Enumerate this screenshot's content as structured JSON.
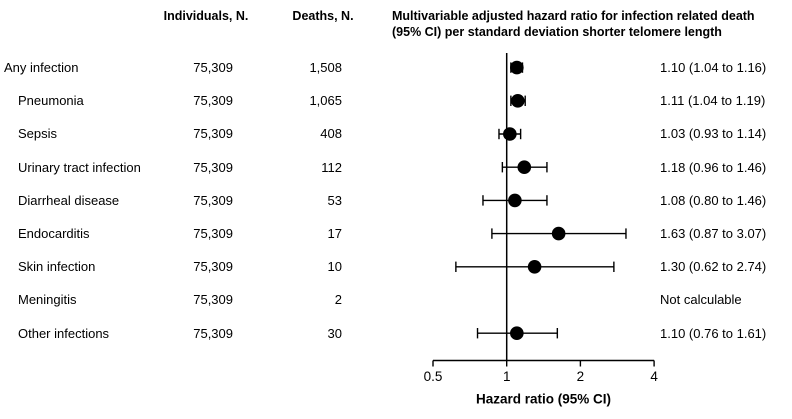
{
  "page": {
    "background": "#ffffff",
    "text_color": "#000000"
  },
  "header": {
    "individuals": "Individuals, N.",
    "deaths": "Deaths, N.",
    "hr_title_line1": "Multivariable adjusted hazard ratio for infection related death",
    "hr_title_line2": "(95% CI) per standard deviation shorter telomere length"
  },
  "rows": [
    {
      "label": "Any infection",
      "indent": false,
      "individuals": "75,309",
      "deaths": "1,508",
      "hr_text": "1.10 (1.04 to 1.16)"
    },
    {
      "label": "Pneumonia",
      "indent": true,
      "individuals": "75,309",
      "deaths": "1,065",
      "hr_text": "1.11 (1.04 to 1.19)"
    },
    {
      "label": "Sepsis",
      "indent": true,
      "individuals": "75,309",
      "deaths": "408",
      "hr_text": "1.03 (0.93 to 1.14)"
    },
    {
      "label": "Urinary tract infection",
      "indent": true,
      "individuals": "75,309",
      "deaths": "112",
      "hr_text": "1.18 (0.96 to 1.46)"
    },
    {
      "label": "Diarrheal disease",
      "indent": true,
      "individuals": "75,309",
      "deaths": "53",
      "hr_text": "1.08 (0.80 to 1.46)"
    },
    {
      "label": "Endocarditis",
      "indent": true,
      "individuals": "75,309",
      "deaths": "17",
      "hr_text": "1.63 (0.87 to 3.07)"
    },
    {
      "label": "Skin infection",
      "indent": true,
      "individuals": "75,309",
      "deaths": "10",
      "hr_text": "1.30 (0.62 to 2.74)"
    },
    {
      "label": "Meningitis",
      "indent": true,
      "individuals": "75,309",
      "deaths": "2",
      "hr_text": "Not calculable"
    },
    {
      "label": "Other infections",
      "indent": true,
      "individuals": "75,309",
      "deaths": "30",
      "hr_text": "1.10 (0.76 to 1.61)"
    }
  ],
  "chart_data": {
    "type": "scatter",
    "variant": "forest-plot",
    "title": "Multivariable adjusted hazard ratio for infection related death (95% CI) per standard deviation shorter telomere length",
    "xlabel": "Hazard ratio (95% CI)",
    "x_scale": "log2",
    "x_range": [
      0.5,
      4
    ],
    "x_ticks": [
      "0.5",
      "1",
      "2",
      "4"
    ],
    "x_tick_values": [
      0.5,
      1,
      2,
      4
    ],
    "reference_line_x": 1,
    "marker_color": "#000000",
    "line_color": "#000000",
    "points": [
      {
        "label": "Any infection",
        "hr": 1.1,
        "lo": 1.04,
        "hi": 1.16
      },
      {
        "label": "Pneumonia",
        "hr": 1.11,
        "lo": 1.04,
        "hi": 1.19
      },
      {
        "label": "Sepsis",
        "hr": 1.03,
        "lo": 0.93,
        "hi": 1.14
      },
      {
        "label": "Urinary tract infection",
        "hr": 1.18,
        "lo": 0.96,
        "hi": 1.46
      },
      {
        "label": "Diarrheal disease",
        "hr": 1.08,
        "lo": 0.8,
        "hi": 1.46
      },
      {
        "label": "Endocarditis",
        "hr": 1.63,
        "lo": 0.87,
        "hi": 3.07
      },
      {
        "label": "Skin infection",
        "hr": 1.3,
        "lo": 0.62,
        "hi": 2.74
      },
      {
        "label": "Meningitis",
        "hr": null,
        "lo": null,
        "hi": null,
        "note": "Not calculable"
      },
      {
        "label": "Other infections",
        "hr": 1.1,
        "lo": 0.76,
        "hi": 1.61
      }
    ]
  }
}
